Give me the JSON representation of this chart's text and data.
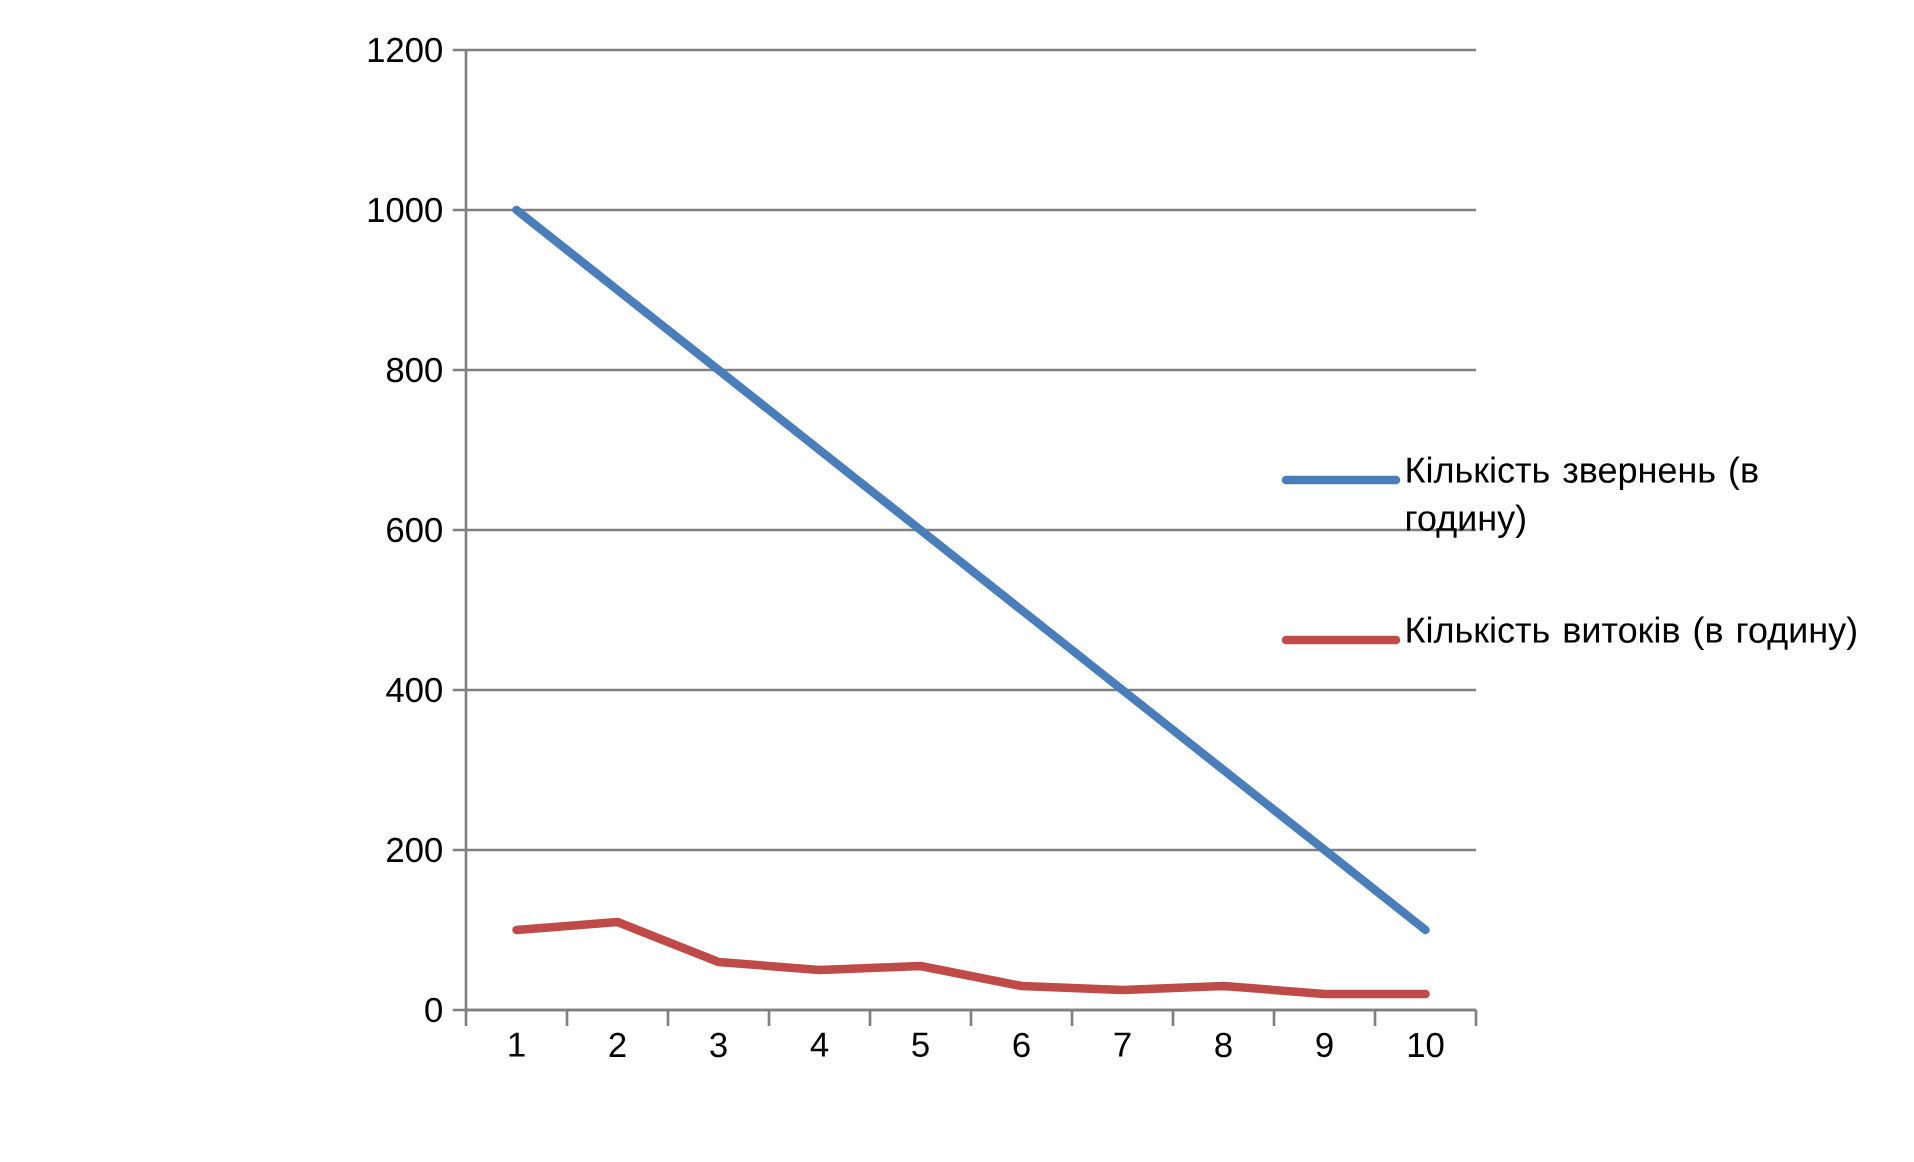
{
  "chart_data": {
    "type": "line",
    "categories": [
      "1",
      "2",
      "3",
      "4",
      "5",
      "6",
      "7",
      "8",
      "9",
      "10"
    ],
    "series": [
      {
        "name": "Кількість звернень (в годину)",
        "color": "#4a7ebb",
        "values": [
          1000,
          900,
          800,
          700,
          600,
          500,
          400,
          300,
          200,
          100
        ]
      },
      {
        "name": "Кількість витоків (в годину)",
        "color": "#be4b48",
        "values": [
          100,
          110,
          60,
          50,
          55,
          30,
          25,
          30,
          20,
          20
        ]
      }
    ],
    "ylim": [
      0,
      1200
    ],
    "yticks": [
      0,
      200,
      400,
      600,
      800,
      1000,
      1200
    ],
    "grid": "y",
    "legend": "right",
    "marker": "none",
    "line_style": "solid"
  }
}
